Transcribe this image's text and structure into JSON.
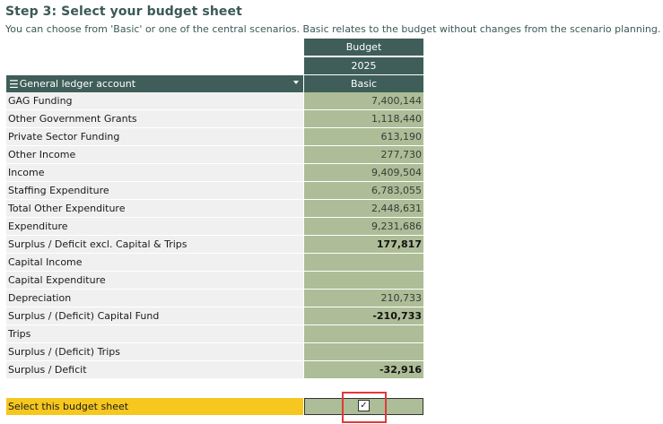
{
  "header": {
    "title": "Step 3: Select your budget sheet",
    "subtitle": "You can choose from 'Basic' or one of the central scenarios. Basic relates to the budget without changes from the scenario planning."
  },
  "table": {
    "col_group": "Budget",
    "year": "2025",
    "scenario": "Basic",
    "row_header_label": "General ledger account",
    "rows": [
      {
        "label": "GAG Funding",
        "value": "7,400,144",
        "bold": false
      },
      {
        "label": "Other Government Grants",
        "value": "1,118,440",
        "bold": false
      },
      {
        "label": "Private Sector Funding",
        "value": "613,190",
        "bold": false
      },
      {
        "label": "Other Income",
        "value": "277,730",
        "bold": false
      },
      {
        "label": "Income",
        "value": "9,409,504",
        "bold": false
      },
      {
        "label": "Staffing Expenditure",
        "value": "6,783,055",
        "bold": false
      },
      {
        "label": "Total Other Expenditure",
        "value": "2,448,631",
        "bold": false
      },
      {
        "label": "Expenditure",
        "value": "9,231,686",
        "bold": false
      },
      {
        "label": "Surplus / Deficit excl. Capital & Trips",
        "value": "177,817",
        "bold": true
      },
      {
        "label": "Capital Income",
        "value": "",
        "bold": false
      },
      {
        "label": "Capital Expenditure",
        "value": "",
        "bold": false
      },
      {
        "label": "Depreciation",
        "value": "210,733",
        "bold": false
      },
      {
        "label": "Surplus / (Deficit) Capital Fund",
        "value": "-210,733",
        "bold": true
      },
      {
        "label": "Trips",
        "value": "",
        "bold": false
      },
      {
        "label": "Surplus / (Deficit) Trips",
        "value": "",
        "bold": false
      },
      {
        "label": "Surplus / Deficit",
        "value": "-32,916",
        "bold": true
      }
    ]
  },
  "select": {
    "label": "Select this budget sheet",
    "checked": true,
    "check_glyph": "✓"
  },
  "icons": {
    "menu": "menu-icon",
    "caret": "chevron-down-icon",
    "checkbox": "checkbox-icon"
  }
}
